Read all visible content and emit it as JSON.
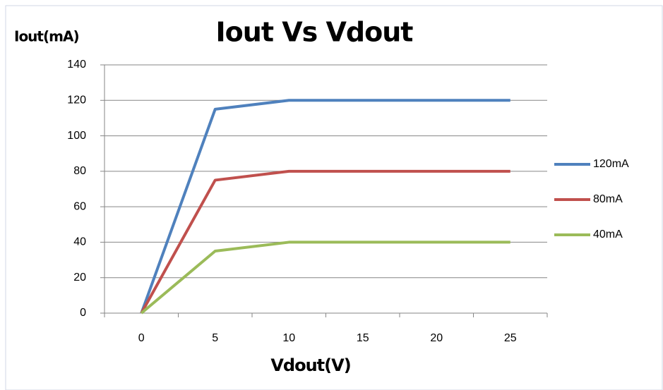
{
  "chart_data": {
    "type": "line",
    "title": "Iout Vs Vdout",
    "x_label": "Vdout(V)",
    "y_label": "Iout(mA)",
    "categories": [
      "0",
      "5",
      "10",
      "15",
      "20",
      "25"
    ],
    "series": [
      {
        "name": "120mA",
        "color": "#4f81bd",
        "values": [
          0,
          115,
          120,
          120,
          120,
          120
        ]
      },
      {
        "name": "80mA",
        "color": "#c0504d",
        "values": [
          0,
          75,
          80,
          80,
          80,
          80
        ]
      },
      {
        "name": "40mA",
        "color": "#9bbb59",
        "values": [
          0,
          35,
          40,
          40,
          40,
          40
        ]
      }
    ],
    "ylim": [
      0,
      140
    ],
    "yticks": [
      0,
      20,
      40,
      60,
      80,
      100,
      120,
      140
    ],
    "grid": true,
    "legend": "right"
  }
}
